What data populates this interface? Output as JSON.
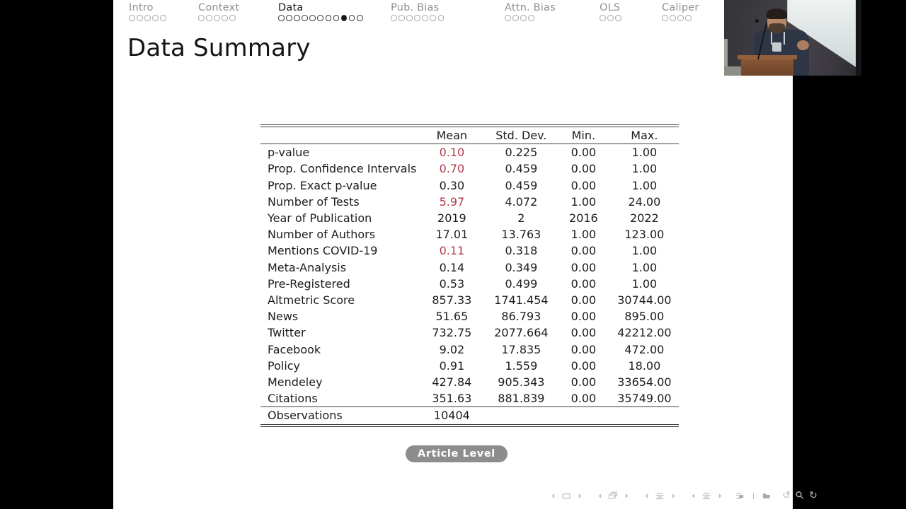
{
  "slide": {
    "title": "Data Summary",
    "nav_sections": [
      {
        "label": "Intro",
        "dots": 5,
        "active_dot": -1,
        "active": false
      },
      {
        "label": "Context",
        "dots": 5,
        "active_dot": -1,
        "active": false
      },
      {
        "label": "Data",
        "dots": 11,
        "active_dot": 8,
        "active": true
      },
      {
        "label": "Pub. Bias",
        "dots": 7,
        "active_dot": -1,
        "active": false
      },
      {
        "label": "Attn. Bias",
        "dots": 4,
        "active_dot": -1,
        "active": false
      },
      {
        "label": "OLS",
        "dots": 3,
        "active_dot": -1,
        "active": false
      },
      {
        "label": "Caliper",
        "dots": 4,
        "active_dot": -1,
        "active": false
      }
    ],
    "table": {
      "headers": [
        "",
        "Mean",
        "Std. Dev.",
        "Min.",
        "Max."
      ],
      "rows": [
        {
          "label": "p-value",
          "mean": "0.10",
          "mean_red": true,
          "std": "0.225",
          "min": "0.00",
          "max": "1.00"
        },
        {
          "label": "Prop. Confidence Intervals",
          "mean": "0.70",
          "mean_red": true,
          "std": "0.459",
          "min": "0.00",
          "max": "1.00"
        },
        {
          "label": "Prop. Exact p-value",
          "mean": "0.30",
          "mean_red": false,
          "std": "0.459",
          "min": "0.00",
          "max": "1.00"
        },
        {
          "label": "Number of Tests",
          "mean": "5.97",
          "mean_red": true,
          "std": "4.072",
          "min": "1.00",
          "max": "24.00"
        },
        {
          "label": "Year of Publication",
          "mean": "2019",
          "mean_red": false,
          "std": "2",
          "min": "2016",
          "max": "2022"
        },
        {
          "label": "Number of Authors",
          "mean": "17.01",
          "mean_red": false,
          "std": "13.763",
          "min": "1.00",
          "max": "123.00"
        },
        {
          "label": "Mentions COVID-19",
          "mean": "0.11",
          "mean_red": true,
          "std": "0.318",
          "min": "0.00",
          "max": "1.00"
        },
        {
          "label": "Meta-Analysis",
          "mean": "0.14",
          "mean_red": false,
          "std": "0.349",
          "min": "0.00",
          "max": "1.00"
        },
        {
          "label": "Pre-Registered",
          "mean": "0.53",
          "mean_red": false,
          "std": "0.499",
          "min": "0.00",
          "max": "1.00"
        },
        {
          "label": "Altmetric Score",
          "mean": "857.33",
          "mean_red": false,
          "std": "1741.454",
          "min": "0.00",
          "max": "30744.00"
        },
        {
          "label": "News",
          "mean": "51.65",
          "mean_red": false,
          "std": "86.793",
          "min": "0.00",
          "max": "895.00"
        },
        {
          "label": "Twitter",
          "mean": "732.75",
          "mean_red": false,
          "std": "2077.664",
          "min": "0.00",
          "max": "42212.00"
        },
        {
          "label": "Facebook",
          "mean": "9.02",
          "mean_red": false,
          "std": "17.835",
          "min": "0.00",
          "max": "472.00"
        },
        {
          "label": "Policy",
          "mean": "0.91",
          "mean_red": false,
          "std": "1.559",
          "min": "0.00",
          "max": "18.00"
        },
        {
          "label": "Mendeley",
          "mean": "427.84",
          "mean_red": false,
          "std": "905.343",
          "min": "0.00",
          "max": "33654.00"
        },
        {
          "label": "Citations",
          "mean": "351.63",
          "mean_red": false,
          "std": "881.839",
          "min": "0.00",
          "max": "35749.00"
        }
      ],
      "footer": {
        "label": "Observations",
        "value": "10404"
      }
    },
    "button": {
      "label": "Article Level"
    },
    "colors": {
      "highlight_red": "#b03a4a",
      "button_gray": "#8d8d8d",
      "inactive_nav": "#8f8f8f"
    }
  },
  "beamer_nav": {
    "groups": [
      [
        {
          "name": "prev-slide",
          "glyph": "tri-left"
        },
        {
          "name": "slide",
          "glyph": "rect"
        },
        {
          "name": "next-slide",
          "glyph": "tri-right"
        }
      ],
      [
        {
          "name": "prev-frame",
          "glyph": "tri-left"
        },
        {
          "name": "frames",
          "glyph": "stack"
        },
        {
          "name": "next-frame",
          "glyph": "tri-right"
        }
      ],
      [
        {
          "name": "prev-subsection",
          "glyph": "tri-left"
        },
        {
          "name": "subsection",
          "glyph": "lines"
        },
        {
          "name": "next-subsection",
          "glyph": "tri-right"
        }
      ],
      [
        {
          "name": "prev-section",
          "glyph": "tri-left"
        },
        {
          "name": "section",
          "glyph": "lines"
        },
        {
          "name": "next-section",
          "glyph": "tri-right"
        }
      ],
      [
        {
          "name": "appendix",
          "glyph": "lines-box"
        },
        {
          "name": "divider",
          "glyph": "pipe"
        },
        {
          "name": "back-matter",
          "glyph": "solid-box"
        }
      ],
      [
        {
          "name": "history-back",
          "glyph": "undo"
        },
        {
          "name": "search",
          "glyph": "magnifier"
        },
        {
          "name": "history-forward",
          "glyph": "redo"
        }
      ]
    ]
  }
}
